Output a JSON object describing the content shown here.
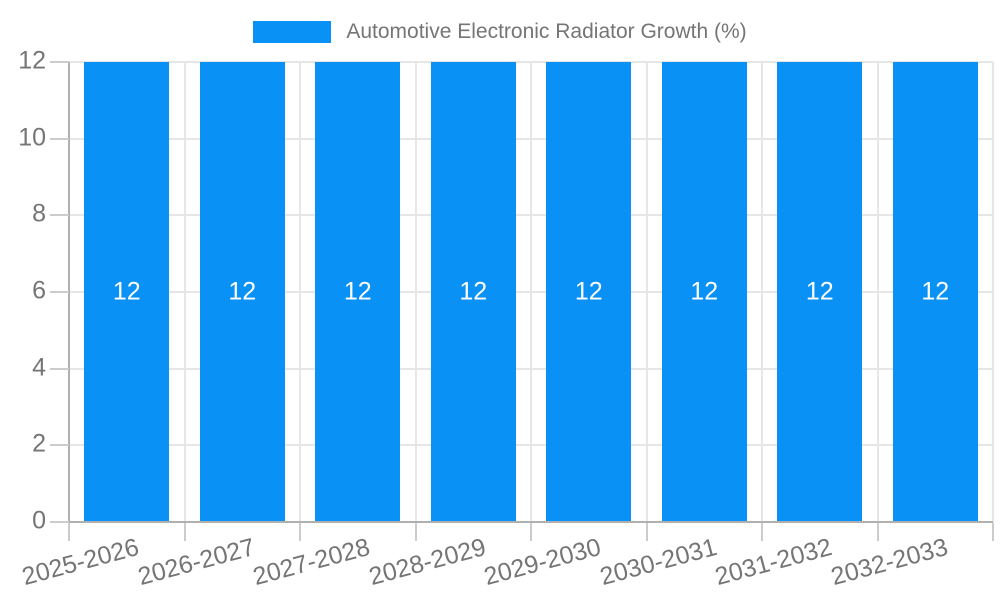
{
  "chart_data": {
    "type": "bar",
    "title": "Automotive Electronic Radiator Growth (%)",
    "categories": [
      "2025-2026",
      "2026-2027",
      "2027-2028",
      "2028-2029",
      "2029-2030",
      "2030-2031",
      "2031-2032",
      "2032-2033"
    ],
    "values": [
      12,
      12,
      12,
      12,
      12,
      12,
      12,
      12
    ],
    "bar_value_labels": [
      "12",
      "12",
      "12",
      "12",
      "12",
      "12",
      "12",
      "12"
    ],
    "ytick_labels": [
      "0",
      "2",
      "4",
      "6",
      "8",
      "10",
      "12"
    ],
    "ylim": [
      0,
      12
    ],
    "ytick_step": 2,
    "grid": true,
    "legend_position": "top-center",
    "x_label_rotation_deg": -15,
    "colors": {
      "bar": "#0a91f5",
      "bar_label": "#ffffff",
      "grid": "#e6e6e6",
      "axis": "#b0b0b0",
      "tick": "#cccccc",
      "text": "#757575",
      "background": "#ffffff"
    }
  }
}
